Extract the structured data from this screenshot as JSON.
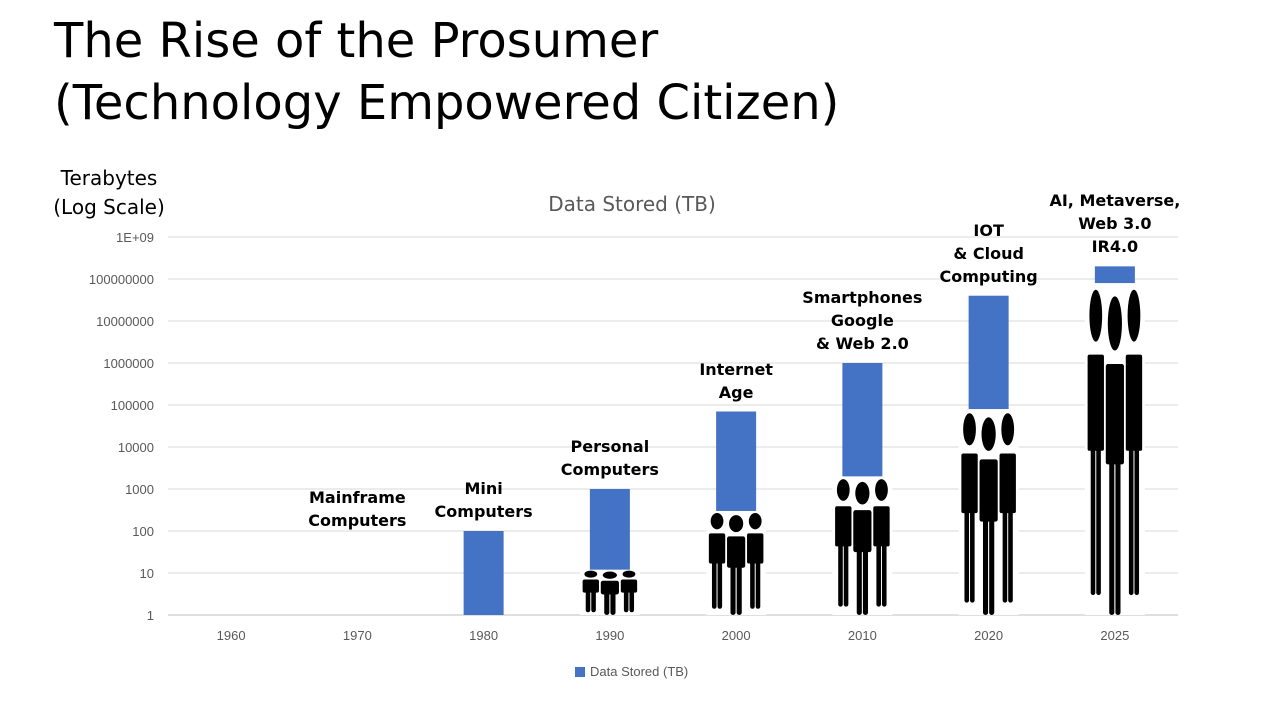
{
  "title_lines": [
    "The Rise of the Prosumer",
    "(Technology Empowered Citizen)"
  ],
  "axis_caption_lines": [
    "Terabytes",
    "(Log Scale)"
  ],
  "colors": {
    "bar": "#4472C4",
    "grid": "#d9d9d9",
    "axis": "#bfbfbf",
    "figure": "#000000"
  },
  "chart_data": {
    "type": "bar",
    "title": "Data Stored (TB)",
    "ylabel": "Terabytes (Log Scale)",
    "yscale": "log",
    "ylim": [
      1,
      1000000000
    ],
    "yticks": [
      "1",
      "10",
      "100",
      "1000",
      "10000",
      "100000",
      "1000000",
      "10000000",
      "100000000",
      "1E+09"
    ],
    "categories": [
      "1960",
      "1970",
      "1980",
      "1990",
      "2000",
      "2010",
      "2020",
      "2025"
    ],
    "series": [
      {
        "name": "Data Stored (TB)",
        "values": [
          1,
          1,
          100,
          1000,
          70000,
          1000000,
          40000000,
          200000000
        ]
      }
    ],
    "legend": "bottom",
    "grid": true
  },
  "era_labels": [
    {
      "category": "1970",
      "lines": [
        "Mainframe",
        "Computers"
      ]
    },
    {
      "category": "1980",
      "lines": [
        "Mini",
        "Computers"
      ]
    },
    {
      "category": "1990",
      "lines": [
        "Personal",
        "Computers"
      ]
    },
    {
      "category": "2000",
      "lines": [
        "Internet",
        "Age"
      ]
    },
    {
      "category": "2010",
      "lines": [
        "Smartphones",
        "Google",
        "& Web 2.0"
      ]
    },
    {
      "category": "2020",
      "lines": [
        "IOT",
        "& Cloud",
        "Computing"
      ]
    },
    {
      "category": "2025",
      "lines": [
        "AI, Metaverse,",
        "Web 3.0",
        "IR4.0"
      ]
    }
  ],
  "people_icons": [
    {
      "category": "1990",
      "icon": "people-group-icon",
      "top_value": 12
    },
    {
      "category": "2000",
      "icon": "people-group-icon",
      "top_value": 300
    },
    {
      "category": "2010",
      "icon": "people-group-icon",
      "top_value": 2000
    },
    {
      "category": "2020",
      "icon": "people-group-icon",
      "top_value": 80000
    },
    {
      "category": "2025",
      "icon": "people-group-icon",
      "top_value": 80000000
    }
  ]
}
